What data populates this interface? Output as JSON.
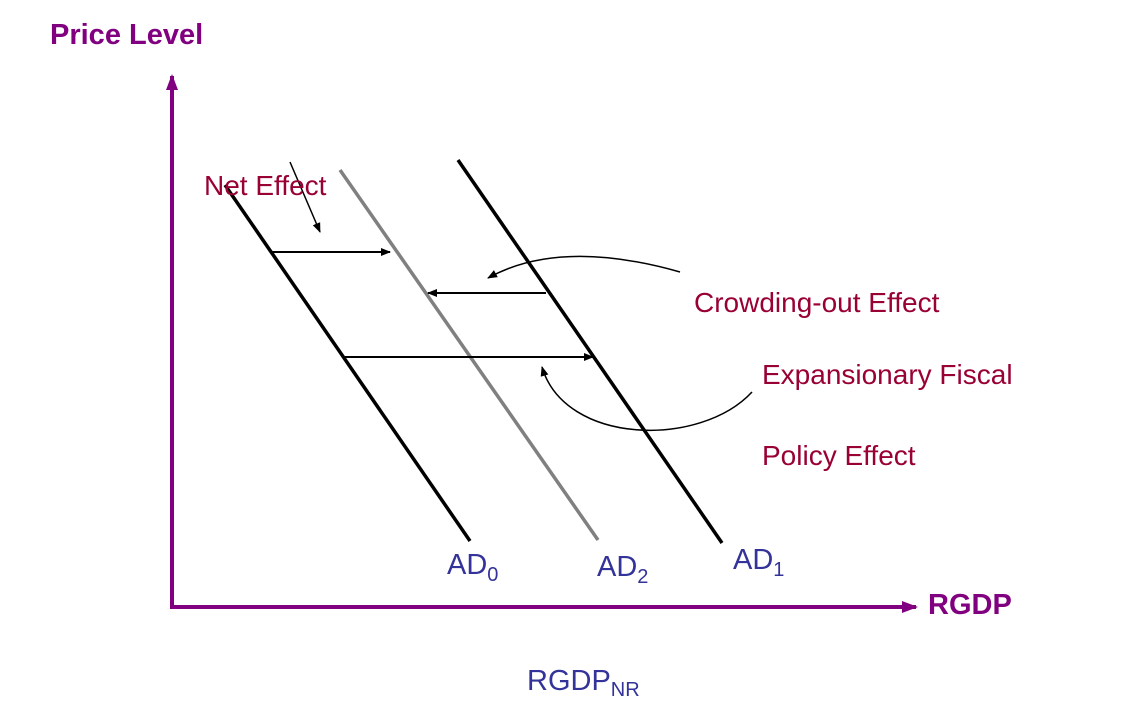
{
  "colors": {
    "axis": "#800080",
    "effect_text": "#990033",
    "curve_label": "#333399",
    "line": "#000000",
    "ad2_line": "#808080"
  },
  "axes": {
    "y_label": "Price Level",
    "x_label": "RGDP"
  },
  "curves": [
    {
      "id": "AD0",
      "base": "AD",
      "sub": "0"
    },
    {
      "id": "AD2",
      "base": "AD",
      "sub": "2"
    },
    {
      "id": "AD1",
      "base": "AD",
      "sub": "1"
    }
  ],
  "annotations": {
    "net_effect": "Net Effect",
    "crowding_out": "Crowding-out Effect",
    "fiscal_line1": "Expansionary Fiscal",
    "fiscal_line2": "Policy Effect"
  },
  "rgdp_nr": {
    "base": "RGDP",
    "sub": "NR"
  }
}
